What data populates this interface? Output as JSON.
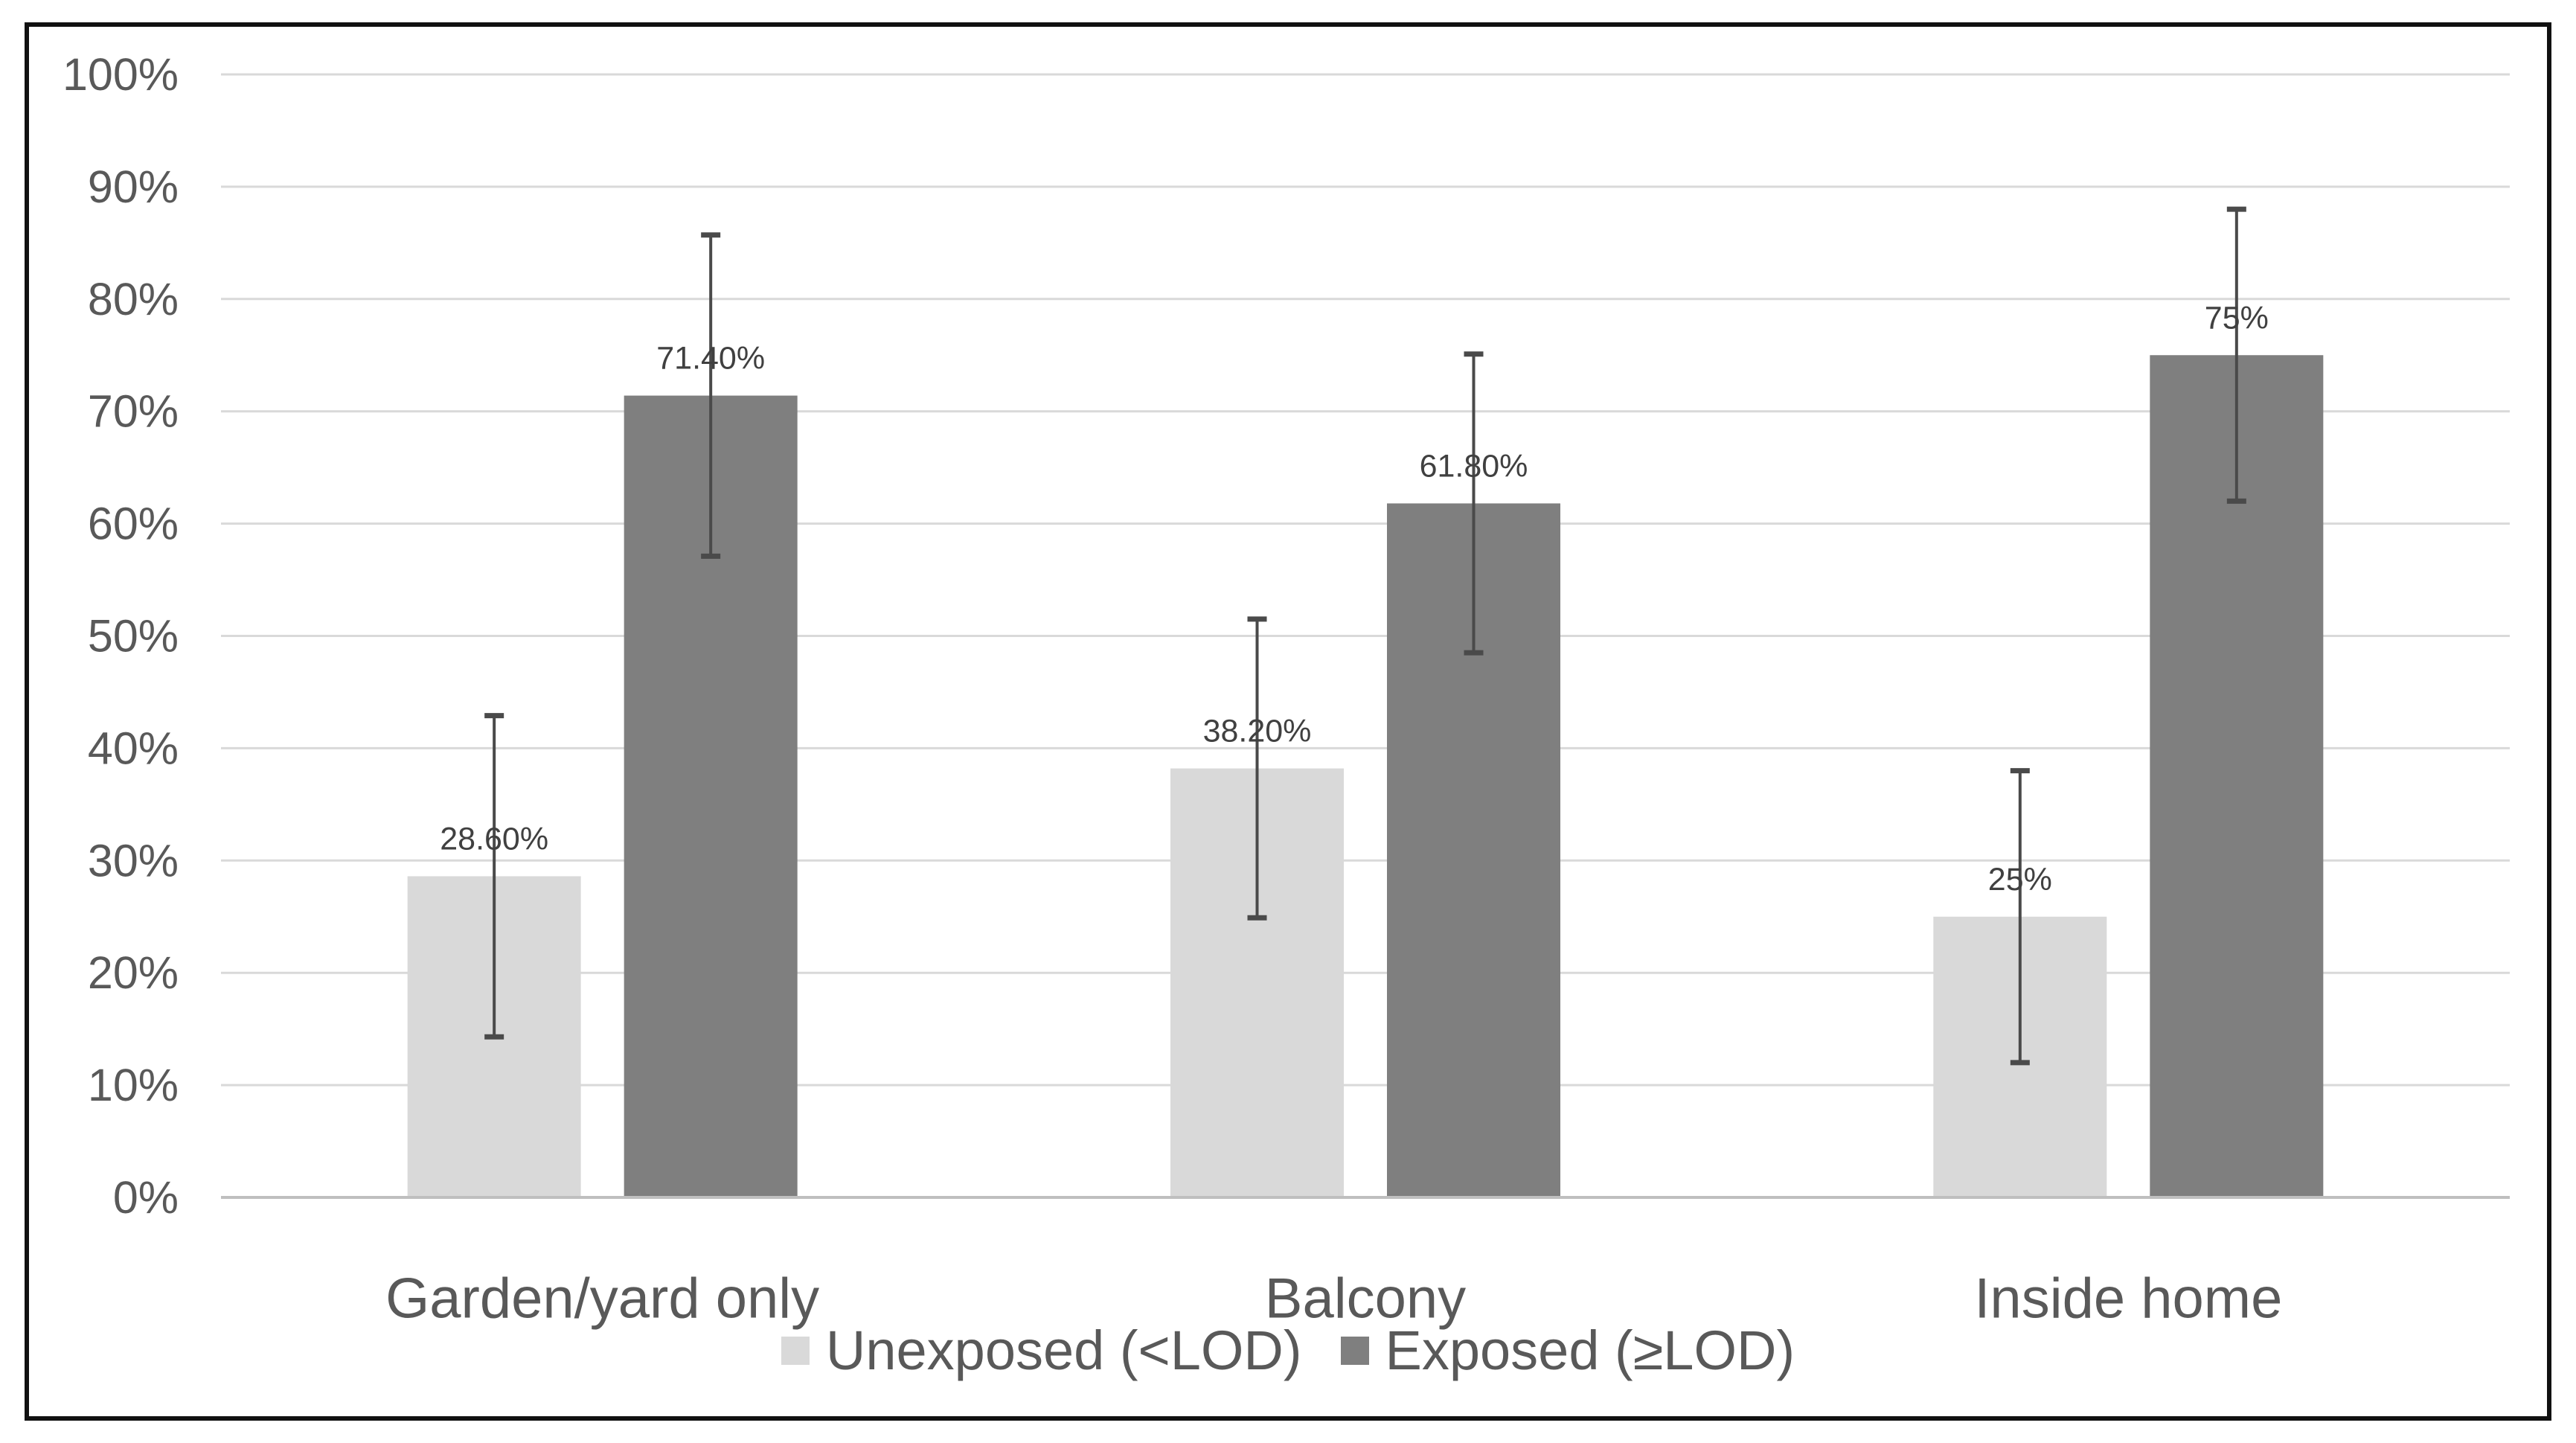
{
  "chart_data": {
    "type": "bar",
    "title": "",
    "xlabel": "",
    "ylabel": "",
    "categories": [
      "Garden/yard only",
      "Balcony",
      "Inside home"
    ],
    "series": [
      {
        "name": "Unexposed (<LOD)",
        "color": "#d9d9d9",
        "values": [
          28.6,
          38.2,
          25
        ],
        "data_labels": [
          "28.60%",
          "38.20%",
          "25%"
        ],
        "error_plus_minus": [
          14.3,
          13.3,
          13.0
        ]
      },
      {
        "name": "Exposed (≥LOD)",
        "color": "#7f7f7f",
        "values": [
          71.4,
          61.8,
          75
        ],
        "data_labels": [
          "71.40%",
          "61.80%",
          "75%"
        ],
        "error_plus_minus": [
          14.3,
          13.3,
          13.0
        ]
      }
    ],
    "y_ticks": [
      "0%",
      "10%",
      "20%",
      "30%",
      "40%",
      "50%",
      "60%",
      "70%",
      "80%",
      "90%",
      "100%"
    ],
    "ylim": [
      0,
      100
    ],
    "grid": true,
    "error_bars": true,
    "legend_position": "bottom"
  },
  "colors": {
    "background": "#ffffff",
    "border": "#111111",
    "gridline": "#d9d9d9",
    "axis_line": "#bfbfbf",
    "axis_text": "#595959",
    "category_text": "#595959",
    "legend_text": "#595959",
    "data_label_text": "#404040",
    "error_bar": "#4a4a4a"
  }
}
